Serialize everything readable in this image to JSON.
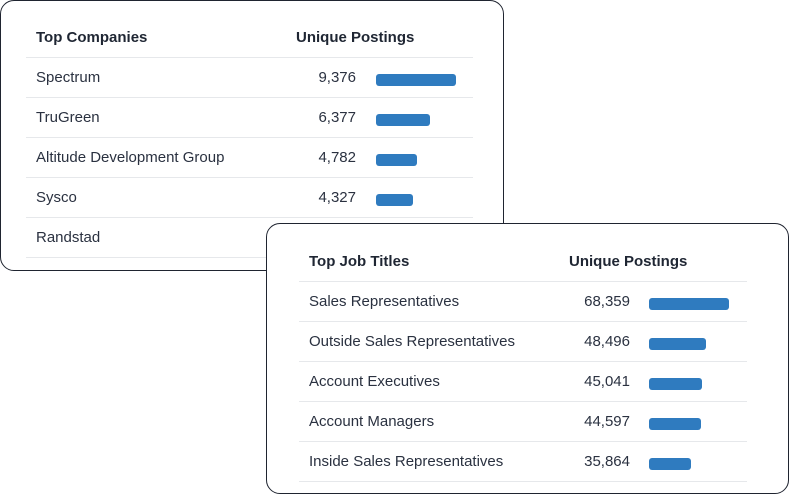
{
  "colors": {
    "bar": "#2f7bbf",
    "border": "#1f2430",
    "divider": "#e6e8eb"
  },
  "companies": {
    "header_name": "Top Companies",
    "header_value": "Unique Postings",
    "rows": [
      {
        "name": "Spectrum",
        "value": "9,376",
        "fraction": 1.0
      },
      {
        "name": "TruGreen",
        "value": "6,377",
        "fraction": 0.68
      },
      {
        "name": "Altitude Development Group",
        "value": "4,782",
        "fraction": 0.51
      },
      {
        "name": "Sysco",
        "value": "4,327",
        "fraction": 0.46
      },
      {
        "name": "Randstad",
        "value": "",
        "fraction": 0
      }
    ]
  },
  "titles": {
    "header_name": "Top Job Titles",
    "header_value": "Unique Postings",
    "rows": [
      {
        "name": "Sales Representatives",
        "value": "68,359",
        "fraction": 1.0
      },
      {
        "name": "Outside Sales Representatives",
        "value": "48,496",
        "fraction": 0.71
      },
      {
        "name": "Account Executives",
        "value": "45,041",
        "fraction": 0.66
      },
      {
        "name": "Account Managers",
        "value": "44,597",
        "fraction": 0.65
      },
      {
        "name": "Inside Sales Representatives",
        "value": "35,864",
        "fraction": 0.52
      }
    ]
  }
}
